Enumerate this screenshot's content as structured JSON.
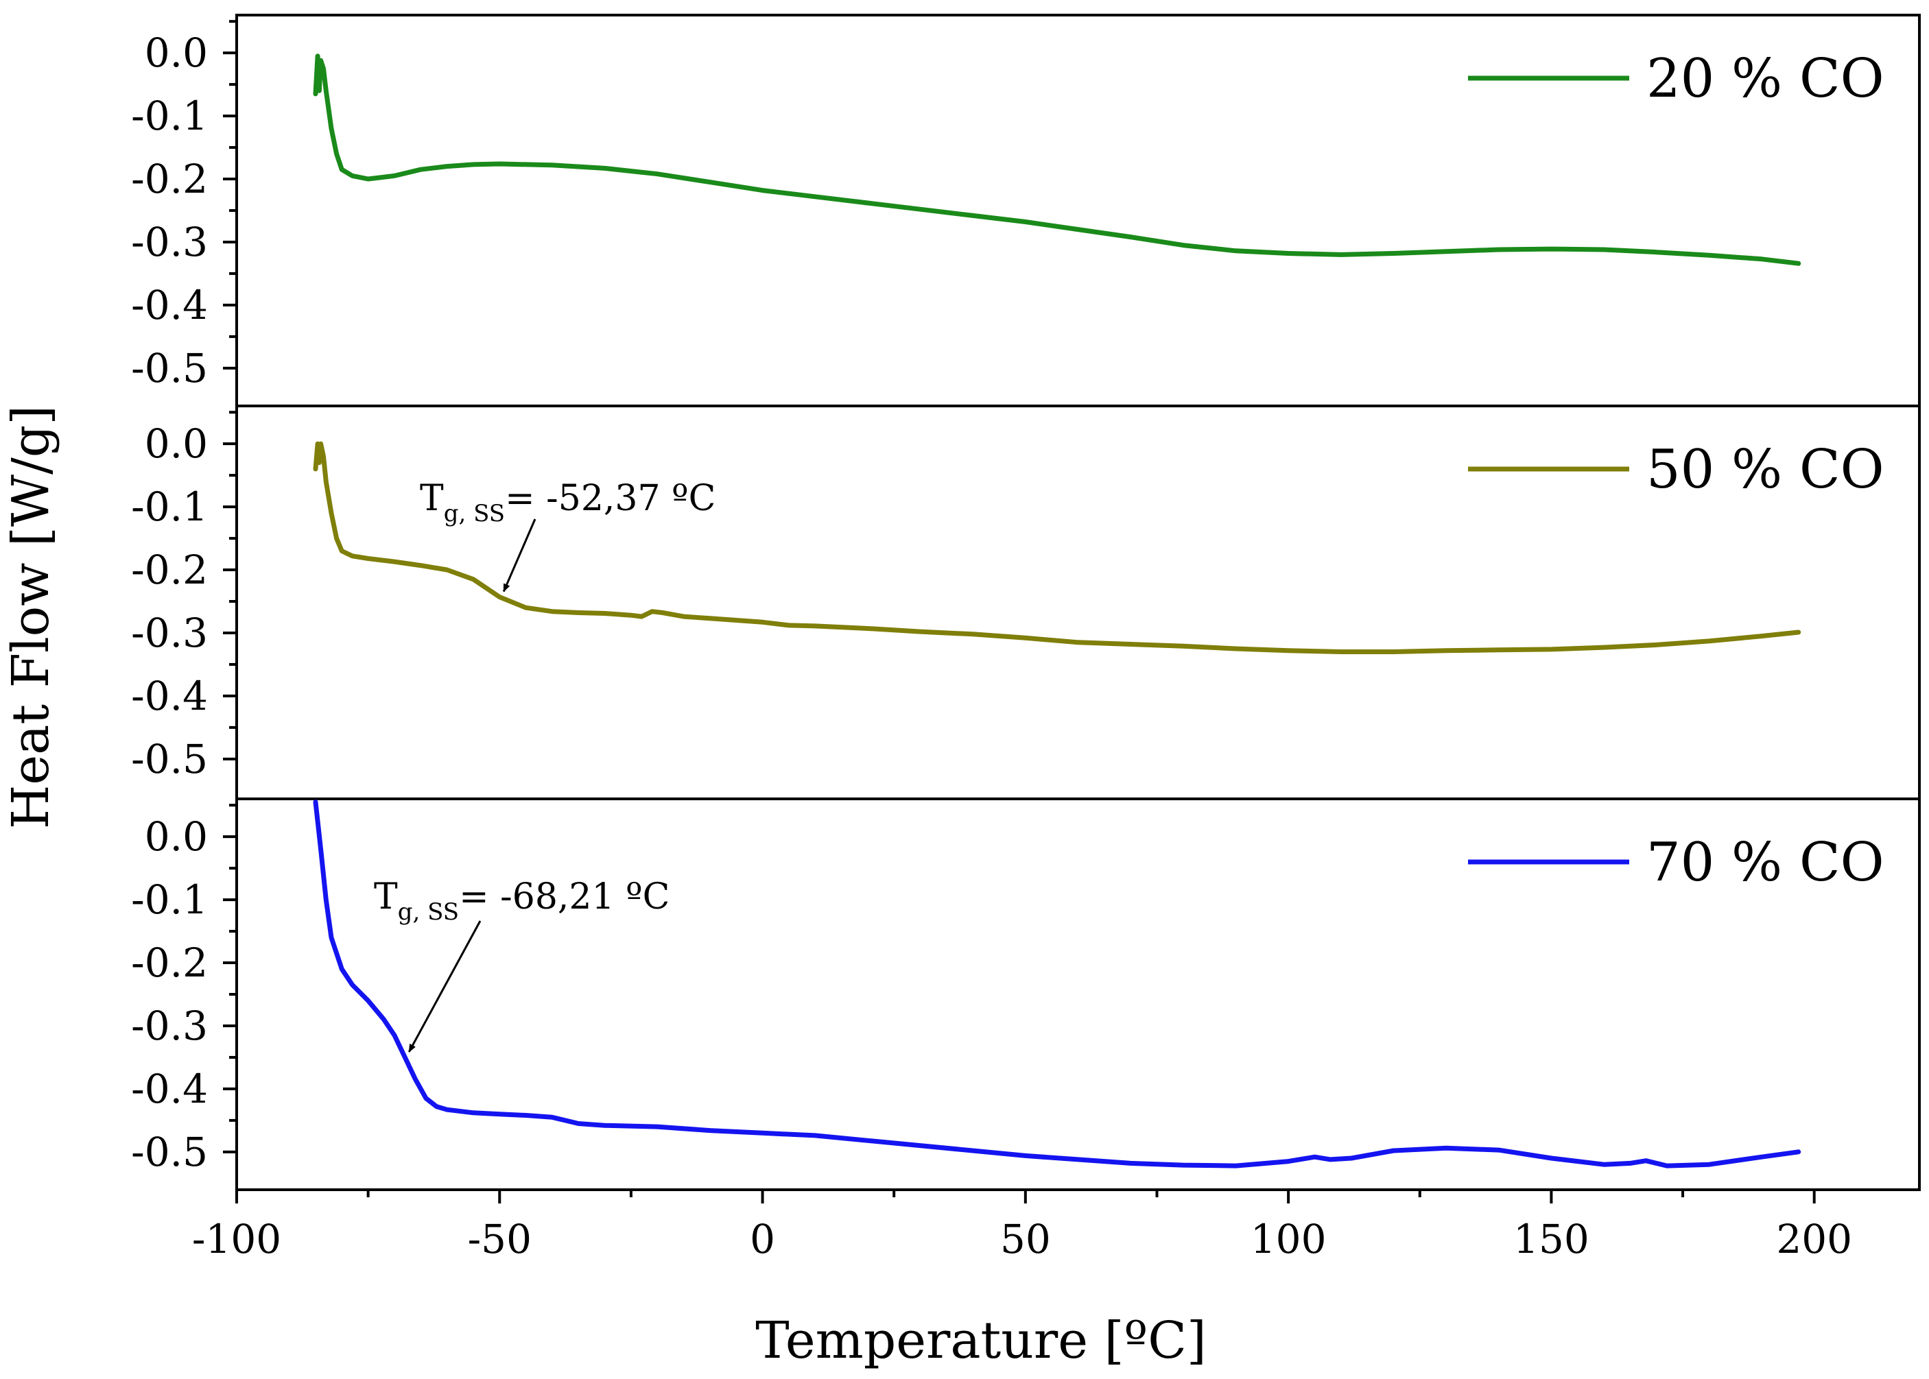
{
  "chart_data": {
    "type": "line",
    "layout": "stacked-panels",
    "xlabel": "Temperature [ºC]",
    "ylabel": "Heat Flow [W/g]",
    "xlim": [
      -100,
      220
    ],
    "x_ticks": [
      -100,
      -50,
      0,
      50,
      100,
      150,
      200
    ],
    "x_tick_labels": [
      "-100",
      "-50",
      "0",
      "50",
      "100",
      "150",
      "200"
    ],
    "ylim": [
      -0.56,
      0.06
    ],
    "y_ticks": [
      0.0,
      -0.1,
      -0.2,
      -0.3,
      -0.4,
      -0.5
    ],
    "y_tick_labels": [
      "0.0",
      "-0.1",
      "-0.2",
      "-0.3",
      "-0.4",
      "-0.5"
    ],
    "grid": false,
    "panels": [
      {
        "legend": "20 % CO",
        "color": "#1a8a1a",
        "annotation": null,
        "series": [
          [
            -85.0,
            -0.065
          ],
          [
            -84.6,
            -0.005
          ],
          [
            -84.3,
            -0.06
          ],
          [
            -84.0,
            -0.012
          ],
          [
            -83.5,
            -0.025
          ],
          [
            -83.0,
            -0.06
          ],
          [
            -82.0,
            -0.12
          ],
          [
            -81.0,
            -0.16
          ],
          [
            -80.0,
            -0.185
          ],
          [
            -78.0,
            -0.195
          ],
          [
            -75.0,
            -0.2
          ],
          [
            -70.0,
            -0.195
          ],
          [
            -65.0,
            -0.185
          ],
          [
            -60.0,
            -0.18
          ],
          [
            -55.0,
            -0.177
          ],
          [
            -50.0,
            -0.176
          ],
          [
            -40.0,
            -0.178
          ],
          [
            -30.0,
            -0.183
          ],
          [
            -20.0,
            -0.192
          ],
          [
            -10.0,
            -0.205
          ],
          [
            0.0,
            -0.218
          ],
          [
            10.0,
            -0.228
          ],
          [
            20.0,
            -0.238
          ],
          [
            30.0,
            -0.248
          ],
          [
            40.0,
            -0.258
          ],
          [
            50.0,
            -0.268
          ],
          [
            60.0,
            -0.28
          ],
          [
            70.0,
            -0.292
          ],
          [
            80.0,
            -0.305
          ],
          [
            90.0,
            -0.314
          ],
          [
            100.0,
            -0.318
          ],
          [
            110.0,
            -0.32
          ],
          [
            120.0,
            -0.318
          ],
          [
            130.0,
            -0.315
          ],
          [
            140.0,
            -0.312
          ],
          [
            150.0,
            -0.311
          ],
          [
            160.0,
            -0.312
          ],
          [
            170.0,
            -0.316
          ],
          [
            180.0,
            -0.321
          ],
          [
            190.0,
            -0.327
          ],
          [
            197.0,
            -0.334
          ]
        ]
      },
      {
        "legend": "50 % CO",
        "color": "#7f7f0a",
        "annotation": {
          "main": "T",
          "subscript": "g, SS",
          "value": "= -52,37 ºC",
          "target": [
            -50.0,
            -0.243
          ]
        },
        "series": [
          [
            -85.0,
            -0.04
          ],
          [
            -84.6,
            0.0
          ],
          [
            -84.3,
            -0.03
          ],
          [
            -84.0,
            0.0
          ],
          [
            -83.5,
            -0.02
          ],
          [
            -83.0,
            -0.06
          ],
          [
            -82.0,
            -0.11
          ],
          [
            -81.0,
            -0.15
          ],
          [
            -80.0,
            -0.17
          ],
          [
            -78.0,
            -0.178
          ],
          [
            -75.0,
            -0.182
          ],
          [
            -70.0,
            -0.187
          ],
          [
            -65.0,
            -0.193
          ],
          [
            -60.0,
            -0.2
          ],
          [
            -55.0,
            -0.215
          ],
          [
            -50.0,
            -0.243
          ],
          [
            -45.0,
            -0.26
          ],
          [
            -40.0,
            -0.266
          ],
          [
            -35.0,
            -0.268
          ],
          [
            -30.0,
            -0.269
          ],
          [
            -25.0,
            -0.272
          ],
          [
            -23.0,
            -0.274
          ],
          [
            -21.0,
            -0.266
          ],
          [
            -19.0,
            -0.268
          ],
          [
            -15.0,
            -0.274
          ],
          [
            -10.0,
            -0.277
          ],
          [
            0.0,
            -0.283
          ],
          [
            5.0,
            -0.288
          ],
          [
            10.0,
            -0.289
          ],
          [
            20.0,
            -0.293
          ],
          [
            30.0,
            -0.298
          ],
          [
            40.0,
            -0.302
          ],
          [
            50.0,
            -0.308
          ],
          [
            60.0,
            -0.315
          ],
          [
            70.0,
            -0.318
          ],
          [
            80.0,
            -0.321
          ],
          [
            90.0,
            -0.325
          ],
          [
            100.0,
            -0.328
          ],
          [
            110.0,
            -0.33
          ],
          [
            120.0,
            -0.33
          ],
          [
            130.0,
            -0.328
          ],
          [
            140.0,
            -0.327
          ],
          [
            150.0,
            -0.326
          ],
          [
            160.0,
            -0.323
          ],
          [
            170.0,
            -0.319
          ],
          [
            180.0,
            -0.313
          ],
          [
            190.0,
            -0.305
          ],
          [
            197.0,
            -0.299
          ]
        ]
      },
      {
        "legend": "70 % CO",
        "color": "#1414f0",
        "annotation": {
          "main": "T",
          "subscript": "g, SS",
          "value": "= -68,21 ºC",
          "target": [
            -68.0,
            -0.35
          ]
        },
        "series": [
          [
            -85.0,
            0.055
          ],
          [
            -84.0,
            -0.02
          ],
          [
            -83.0,
            -0.1
          ],
          [
            -82.0,
            -0.16
          ],
          [
            -80.0,
            -0.21
          ],
          [
            -78.0,
            -0.235
          ],
          [
            -75.0,
            -0.26
          ],
          [
            -72.0,
            -0.29
          ],
          [
            -70.0,
            -0.315
          ],
          [
            -68.0,
            -0.35
          ],
          [
            -66.0,
            -0.385
          ],
          [
            -64.0,
            -0.415
          ],
          [
            -62.0,
            -0.428
          ],
          [
            -60.0,
            -0.433
          ],
          [
            -55.0,
            -0.438
          ],
          [
            -50.0,
            -0.44
          ],
          [
            -45.0,
            -0.442
          ],
          [
            -40.0,
            -0.445
          ],
          [
            -35.0,
            -0.455
          ],
          [
            -30.0,
            -0.458
          ],
          [
            -20.0,
            -0.46
          ],
          [
            -10.0,
            -0.466
          ],
          [
            0.0,
            -0.47
          ],
          [
            10.0,
            -0.474
          ],
          [
            20.0,
            -0.482
          ],
          [
            30.0,
            -0.49
          ],
          [
            40.0,
            -0.498
          ],
          [
            50.0,
            -0.506
          ],
          [
            60.0,
            -0.512
          ],
          [
            70.0,
            -0.518
          ],
          [
            80.0,
            -0.521
          ],
          [
            90.0,
            -0.522
          ],
          [
            100.0,
            -0.515
          ],
          [
            105.0,
            -0.508
          ],
          [
            108.0,
            -0.512
          ],
          [
            112.0,
            -0.51
          ],
          [
            120.0,
            -0.498
          ],
          [
            130.0,
            -0.494
          ],
          [
            140.0,
            -0.497
          ],
          [
            150.0,
            -0.51
          ],
          [
            160.0,
            -0.52
          ],
          [
            165.0,
            -0.518
          ],
          [
            168.0,
            -0.514
          ],
          [
            172.0,
            -0.522
          ],
          [
            180.0,
            -0.52
          ],
          [
            190.0,
            -0.508
          ],
          [
            197.0,
            -0.5
          ]
        ]
      }
    ]
  }
}
